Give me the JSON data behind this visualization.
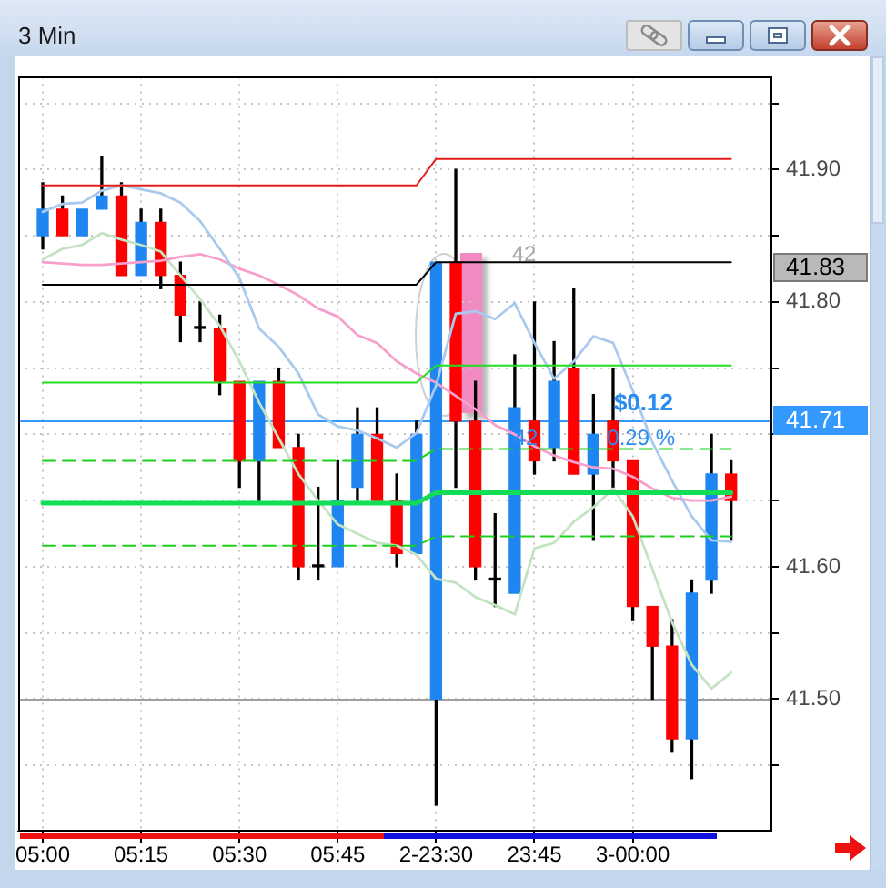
{
  "chart_data": {
    "type": "candlestick",
    "title": "3 Min",
    "categories": [
      "05:00",
      null,
      null,
      null,
      null,
      "05:15",
      null,
      null,
      null,
      null,
      "05:30",
      null,
      null,
      null,
      null,
      "05:45",
      null,
      null,
      null,
      null,
      "2-23:30",
      null,
      null,
      null,
      null,
      "23:45",
      null,
      null,
      null,
      null,
      "3-00:00",
      null,
      null,
      null,
      null,
      null
    ],
    "ohlc": [
      [
        41.85,
        41.89,
        41.84,
        41.87
      ],
      [
        41.87,
        41.88,
        41.85,
        41.85
      ],
      [
        41.85,
        41.87,
        41.85,
        41.87
      ],
      [
        41.87,
        41.91,
        41.87,
        41.88
      ],
      [
        41.88,
        41.89,
        41.82,
        41.82
      ],
      [
        41.82,
        41.87,
        41.82,
        41.86
      ],
      [
        41.86,
        41.87,
        41.81,
        41.82
      ],
      [
        41.82,
        41.83,
        41.77,
        41.79
      ],
      [
        41.78,
        41.8,
        41.77,
        41.78
      ],
      [
        41.78,
        41.79,
        41.73,
        41.74
      ],
      [
        41.74,
        41.74,
        41.66,
        41.68
      ],
      [
        41.68,
        41.74,
        41.65,
        41.74
      ],
      [
        41.74,
        41.75,
        41.69,
        41.69
      ],
      [
        41.69,
        41.7,
        41.59,
        41.6
      ],
      [
        41.6,
        41.66,
        41.59,
        41.6
      ],
      [
        41.6,
        41.68,
        41.6,
        41.65
      ],
      [
        41.66,
        41.72,
        41.65,
        41.7
      ],
      [
        41.7,
        41.72,
        41.65,
        41.65
      ],
      [
        41.65,
        41.67,
        41.6,
        41.61
      ],
      [
        41.61,
        41.71,
        41.61,
        41.7
      ],
      [
        41.5,
        41.83,
        41.42,
        41.83
      ],
      [
        41.83,
        41.9,
        41.66,
        41.71
      ],
      [
        41.71,
        41.74,
        41.59,
        41.6
      ],
      [
        41.59,
        41.64,
        41.57,
        41.59
      ],
      [
        41.58,
        41.76,
        41.58,
        41.72
      ],
      [
        41.71,
        41.8,
        41.67,
        41.68
      ],
      [
        41.69,
        41.77,
        41.68,
        41.74
      ],
      [
        41.75,
        41.81,
        41.67,
        41.67
      ],
      [
        41.67,
        41.73,
        41.62,
        41.7
      ],
      [
        41.71,
        41.75,
        41.66,
        41.68
      ],
      [
        41.68,
        41.68,
        41.56,
        41.57
      ],
      [
        41.57,
        41.57,
        41.5,
        41.54
      ],
      [
        41.54,
        41.56,
        41.46,
        41.47
      ],
      [
        41.47,
        41.59,
        41.44,
        41.58
      ],
      [
        41.59,
        41.7,
        41.58,
        41.67
      ],
      [
        41.67,
        41.68,
        41.62,
        41.65
      ]
    ],
    "colors": [
      "#1f85f0",
      "#ff0000",
      "#1f85f0",
      "#1f85f0",
      "#ff0000",
      "#1f85f0",
      "#ff0000",
      "#ff0000",
      "#000000",
      "#ff0000",
      "#ff0000",
      "#1f85f0",
      "#ff0000",
      "#ff0000",
      "#000000",
      "#1f85f0",
      "#1f85f0",
      "#ff0000",
      "#ff0000",
      "#1f85f0",
      "#1f85f0",
      "#ff0000",
      "#ff0000",
      "#000000",
      "#1f85f0",
      "#ff0000",
      "#1f85f0",
      "#ff0000",
      "#1f85f0",
      "#ff0000",
      "#ff0000",
      "#ff0000",
      "#ff0000",
      "#1f85f0",
      "#1f85f0",
      "#ff0000"
    ],
    "series": [
      {
        "type": "line",
        "color": "#e51c1c",
        "values": [
          41.888,
          41.888,
          41.888,
          41.888,
          41.888,
          41.888,
          41.888,
          41.888,
          41.888,
          41.888,
          41.888,
          41.888,
          41.888,
          41.888,
          41.888,
          41.888,
          41.888,
          41.888,
          41.888,
          41.888,
          41.908,
          41.908,
          41.908,
          41.908,
          41.908,
          41.908,
          41.908,
          41.908,
          41.908,
          41.908,
          41.908,
          41.908,
          41.908,
          41.908,
          41.908,
          41.908
        ]
      },
      {
        "type": "line",
        "color": "#000000",
        "values": [
          41.813,
          41.813,
          41.813,
          41.813,
          41.813,
          41.813,
          41.813,
          41.813,
          41.813,
          41.813,
          41.813,
          41.813,
          41.813,
          41.813,
          41.813,
          41.813,
          41.813,
          41.813,
          41.813,
          41.813,
          41.83,
          41.83,
          41.83,
          41.83,
          41.83,
          41.83,
          41.83,
          41.83,
          41.83,
          41.83,
          41.83,
          41.83,
          41.83,
          41.83,
          41.83,
          41.83
        ]
      },
      {
        "type": "line",
        "color": "#22dd22",
        "values": [
          41.739,
          41.739,
          41.739,
          41.739,
          41.739,
          41.739,
          41.739,
          41.739,
          41.739,
          41.739,
          41.739,
          41.739,
          41.739,
          41.739,
          41.739,
          41.739,
          41.739,
          41.739,
          41.739,
          41.739,
          41.752,
          41.752,
          41.752,
          41.752,
          41.752,
          41.752,
          41.752,
          41.752,
          41.752,
          41.752,
          41.752,
          41.752,
          41.752,
          41.752,
          41.752,
          41.752
        ]
      },
      {
        "type": "line",
        "color": "#11dd55",
        "values": [
          41.648,
          41.648,
          41.648,
          41.648,
          41.648,
          41.648,
          41.648,
          41.648,
          41.648,
          41.648,
          41.648,
          41.648,
          41.648,
          41.648,
          41.648,
          41.648,
          41.648,
          41.648,
          41.648,
          41.648,
          41.656,
          41.656,
          41.656,
          41.656,
          41.656,
          41.656,
          41.656,
          41.656,
          41.656,
          41.656,
          41.656,
          41.656,
          41.656,
          41.656,
          41.656,
          41.656
        ]
      },
      {
        "type": "line",
        "color": "#1ccf1c",
        "line_style": "dashed",
        "values": [
          41.68,
          41.68,
          41.68,
          41.68,
          41.68,
          41.68,
          41.68,
          41.68,
          41.68,
          41.68,
          41.68,
          41.68,
          41.68,
          41.68,
          41.68,
          41.68,
          41.68,
          41.68,
          41.68,
          41.68,
          41.689,
          41.689,
          41.689,
          41.689,
          41.689,
          41.689,
          41.689,
          41.689,
          41.689,
          41.689,
          41.689,
          41.689,
          41.689,
          41.689,
          41.689,
          41.689
        ]
      },
      {
        "type": "line",
        "color": "#1ccf1c",
        "line_style": "dashed",
        "values": [
          41.616,
          41.616,
          41.616,
          41.616,
          41.616,
          41.616,
          41.616,
          41.616,
          41.616,
          41.616,
          41.616,
          41.616,
          41.616,
          41.616,
          41.616,
          41.616,
          41.616,
          41.616,
          41.616,
          41.616,
          41.623,
          41.623,
          41.623,
          41.623,
          41.623,
          41.623,
          41.623,
          41.623,
          41.623,
          41.623,
          41.623,
          41.623,
          41.623,
          41.623,
          41.623,
          41.623
        ]
      },
      {
        "type": "line",
        "color": "#a9c9ef",
        "values": [
          41.868,
          41.874,
          41.875,
          41.884,
          41.888,
          41.885,
          41.882,
          41.875,
          41.861,
          41.84,
          41.818,
          41.78,
          41.766,
          41.746,
          41.715,
          41.706,
          41.703,
          41.697,
          41.69,
          41.701,
          41.737,
          41.791,
          41.793,
          41.787,
          41.799,
          41.769,
          41.742,
          41.755,
          41.774,
          41.769,
          41.733,
          41.694,
          41.665,
          41.638,
          41.62,
          41.619
        ]
      },
      {
        "type": "line",
        "color": "#f7a0cc",
        "values": [
          41.83,
          41.829,
          41.828,
          41.828,
          41.829,
          41.83,
          41.831,
          41.834,
          41.836,
          41.832,
          41.825,
          41.82,
          41.813,
          41.805,
          41.795,
          41.789,
          41.775,
          41.769,
          41.755,
          41.746,
          41.739,
          41.729,
          41.719,
          41.707,
          41.7,
          41.691,
          41.684,
          41.679,
          41.675,
          41.674,
          41.668,
          41.659,
          41.652,
          41.65,
          41.65,
          41.653
        ]
      },
      {
        "type": "line",
        "color": "#c3e3c3",
        "values": [
          41.832,
          41.84,
          41.843,
          41.852,
          41.847,
          41.843,
          41.838,
          41.82,
          41.802,
          41.782,
          41.755,
          41.724,
          41.697,
          41.67,
          41.65,
          41.632,
          41.625,
          41.618,
          41.616,
          41.609,
          41.591,
          41.588,
          41.577,
          41.571,
          41.564,
          41.614,
          41.618,
          41.634,
          41.645,
          41.659,
          41.638,
          41.598,
          41.558,
          41.526,
          41.508,
          41.52
        ]
      }
    ],
    "ref_lines": [
      {
        "axis": "y",
        "value": 41.71,
        "label": "41.71",
        "color": "#3399ff"
      },
      {
        "axis": "y",
        "value": 41.5,
        "color": "#a0a0a0"
      }
    ],
    "annotations": [
      "42",
      {
        "text": "$0.12",
        "y": 41.72
      },
      {
        "text": "42",
        "y": 41.7
      },
      {
        "text": "0.29 %",
        "y": 41.7
      },
      "41.83"
    ],
    "ylim": [
      41.4,
      41.97
    ],
    "yticks": [
      {
        "value": 41.45,
        "label": null
      },
      {
        "value": 41.5,
        "label": "41.50"
      },
      {
        "value": 41.55,
        "label": null
      },
      {
        "value": 41.6,
        "label": "41.60"
      },
      {
        "value": 41.65,
        "label": null
      },
      {
        "value": 41.7,
        "label": null
      },
      {
        "value": 41.75,
        "label": null
      },
      {
        "value": 41.8,
        "label": "41.80"
      },
      {
        "value": 41.85,
        "label": null
      },
      {
        "value": 41.9,
        "label": "41.90"
      },
      {
        "value": 41.95,
        "label": null
      }
    ],
    "grid": true,
    "legend": false,
    "marker": "none"
  }
}
